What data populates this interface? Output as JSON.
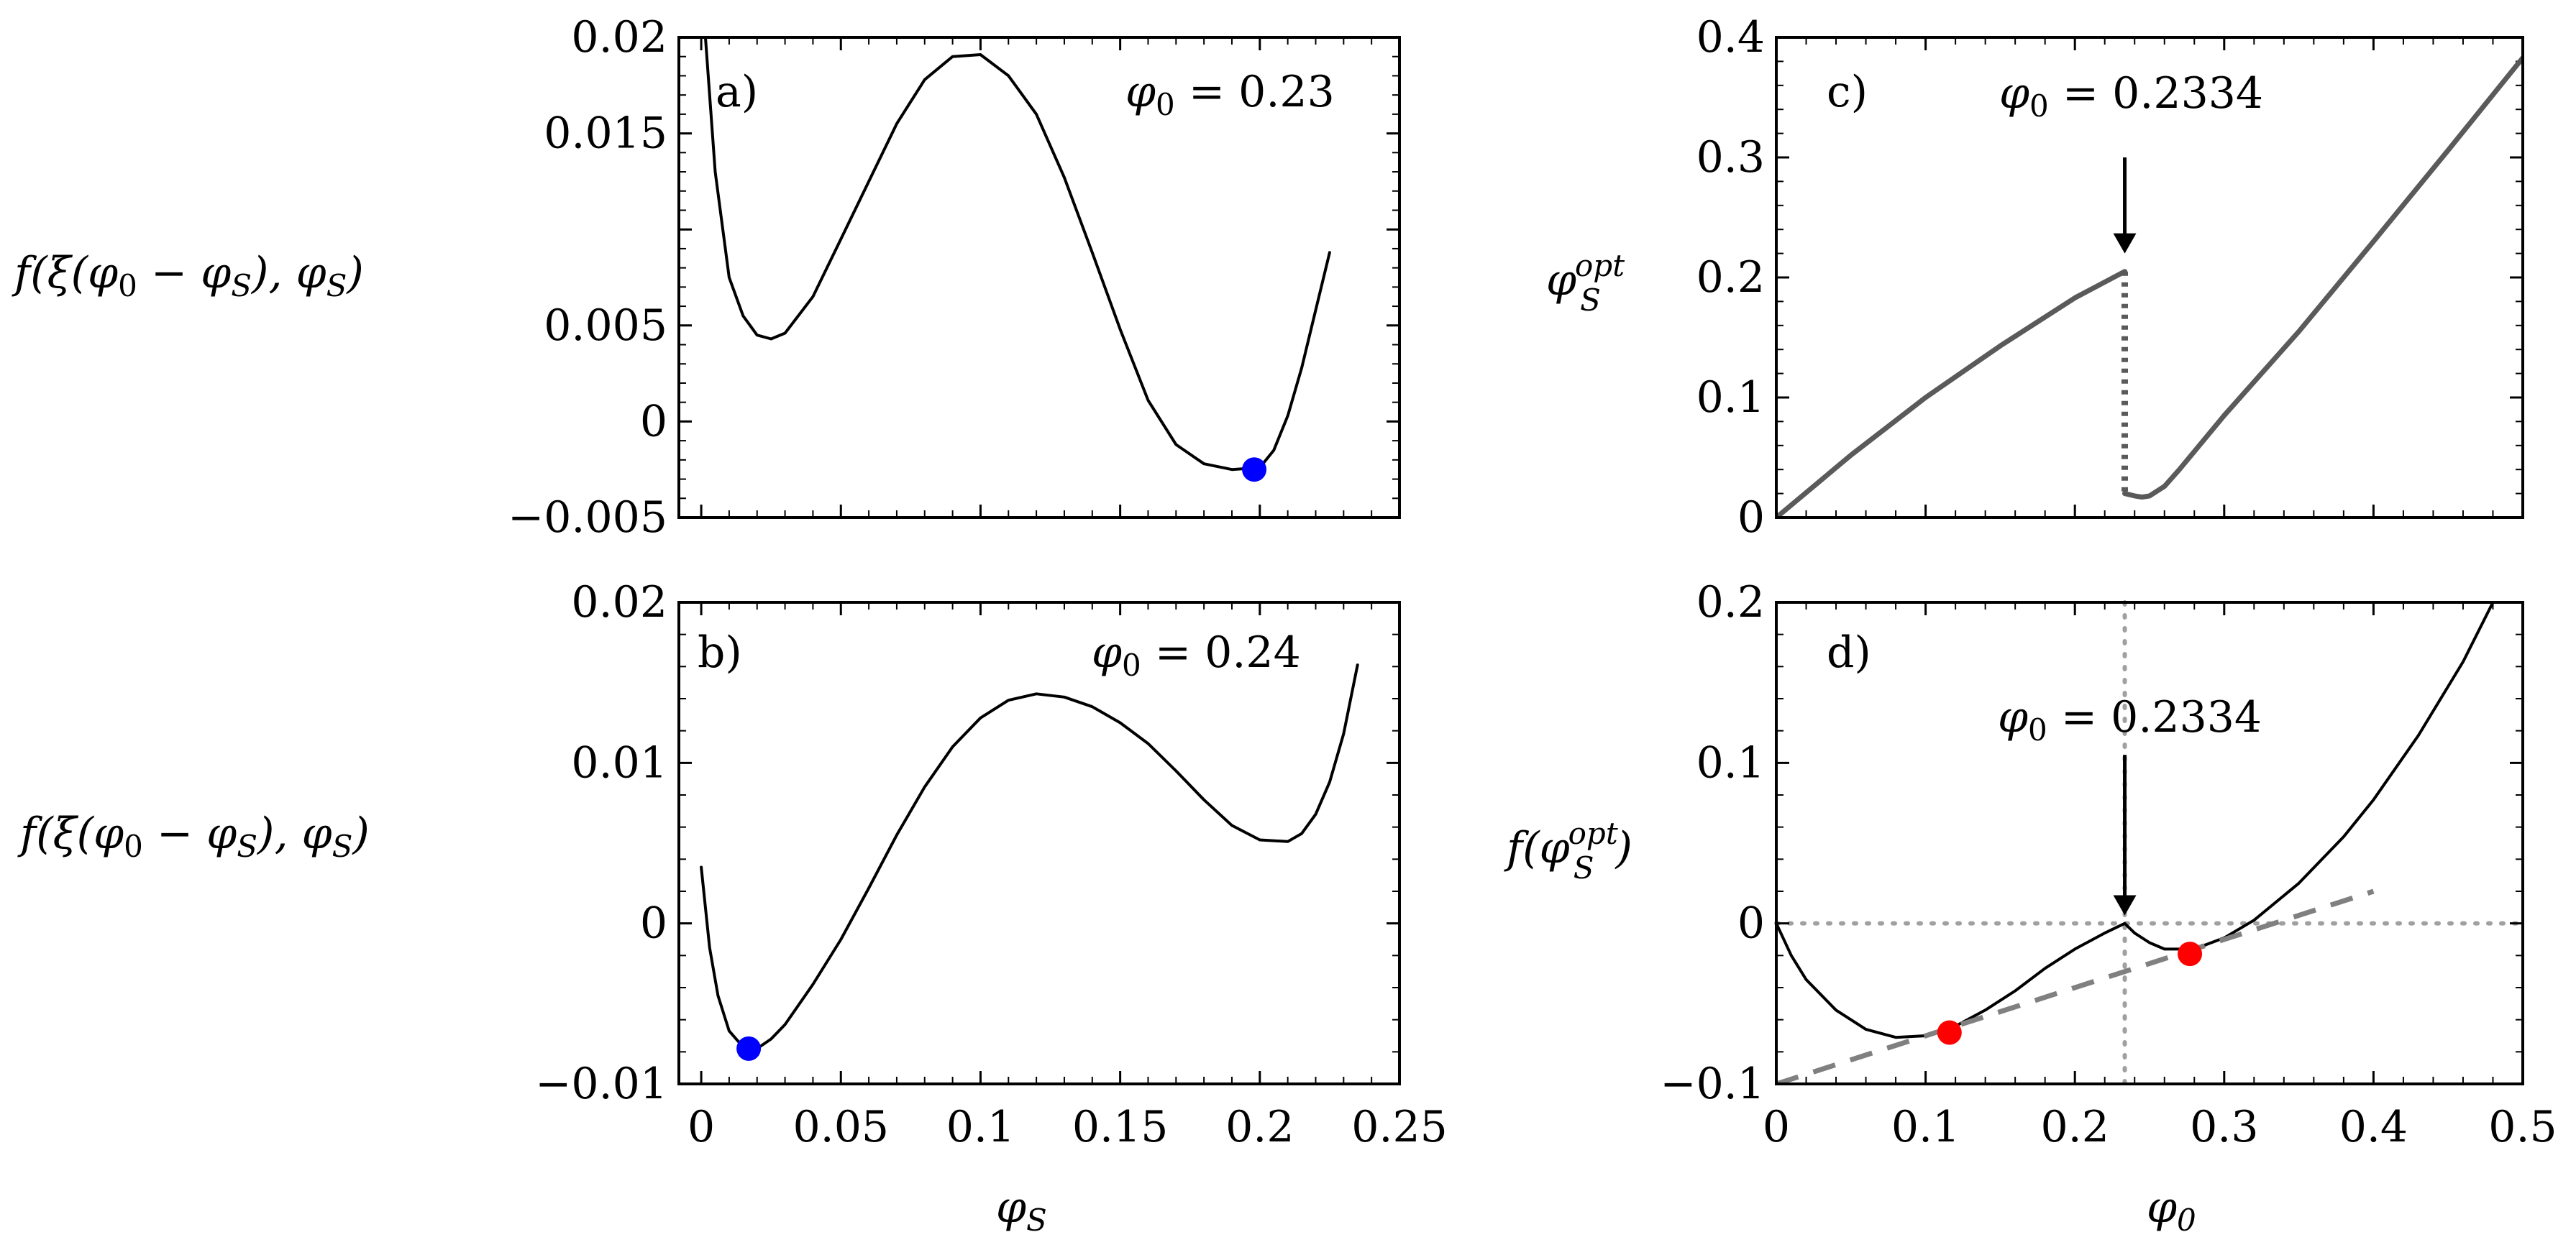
{
  "chart_data": [
    {
      "id": "a",
      "type": "line",
      "panel_label": "a)",
      "annotation": {
        "symbol": "φ",
        "subscript": "0",
        "relation": " = ",
        "value": "0.23"
      },
      "ylabel": {
        "pre": "f(ξ(φ",
        "sub1": "0",
        "mid": " − φ",
        "sub2": "S",
        "mid2": "), φ",
        "sub3": "S",
        "post": ")"
      },
      "xlabel": "",
      "xlim": [
        -0.008,
        0.25
      ],
      "ylim": [
        -0.005,
        0.02
      ],
      "x_ticks": [
        0,
        0.05,
        0.1,
        0.15,
        0.2,
        0.25
      ],
      "x_tick_labels": [],
      "y_ticks": [
        -0.005,
        0,
        0.005,
        0.01,
        0.015,
        0.02
      ],
      "y_tick_labels": [
        "−0.005",
        "0",
        "0.005",
        "",
        "0.015",
        "0.02"
      ],
      "series": [
        {
          "name": "f",
          "color": "#000000",
          "x": [
            0.001,
            0.005,
            0.01,
            0.015,
            0.02,
            0.025,
            0.03,
            0.04,
            0.05,
            0.06,
            0.07,
            0.08,
            0.09,
            0.1,
            0.11,
            0.12,
            0.13,
            0.14,
            0.15,
            0.16,
            0.17,
            0.18,
            0.19,
            0.2,
            0.205,
            0.21,
            0.215,
            0.22,
            0.225
          ],
          "y": [
            0.021,
            0.013,
            0.0075,
            0.0055,
            0.0045,
            0.0043,
            0.0046,
            0.0065,
            0.0095,
            0.0125,
            0.0155,
            0.0178,
            0.019,
            0.0191,
            0.018,
            0.016,
            0.0127,
            0.0088,
            0.0048,
            0.0011,
            -0.0012,
            -0.0022,
            -0.0025,
            -0.0024,
            -0.0015,
            0.0003,
            0.0028,
            0.0058,
            0.0088
          ]
        }
      ],
      "markers": [
        {
          "x": 0.198,
          "y": -0.0025,
          "color": "#0000ff"
        }
      ]
    },
    {
      "id": "b",
      "type": "line",
      "panel_label": "b)",
      "annotation": {
        "symbol": "φ",
        "subscript": "0",
        "relation": " = ",
        "value": "0.24"
      },
      "ylabel": {
        "pre": "f(ξ(φ",
        "sub1": "0",
        "mid": " − φ",
        "sub2": "S",
        "mid2": "), φ",
        "sub3": "S",
        "post": ")"
      },
      "xlabel": {
        "symbol": "φ",
        "subscript": "S"
      },
      "xlim": [
        -0.008,
        0.25
      ],
      "ylim": [
        -0.01,
        0.02
      ],
      "x_ticks": [
        0,
        0.05,
        0.1,
        0.15,
        0.2,
        0.25
      ],
      "x_tick_labels": [
        "0",
        "0.05",
        "0.1",
        "0.15",
        "0.2",
        "0.25"
      ],
      "y_ticks": [
        -0.01,
        0,
        0.01,
        0.02
      ],
      "y_tick_labels": [
        "−0.01",
        "0",
        "0.01",
        "0.02"
      ],
      "series": [
        {
          "name": "f",
          "color": "#000000",
          "x": [
            0.0,
            0.003,
            0.006,
            0.01,
            0.015,
            0.02,
            0.025,
            0.03,
            0.04,
            0.05,
            0.06,
            0.07,
            0.08,
            0.09,
            0.1,
            0.11,
            0.12,
            0.13,
            0.14,
            0.15,
            0.16,
            0.17,
            0.18,
            0.19,
            0.2,
            0.21,
            0.215,
            0.22,
            0.225,
            0.23,
            0.235
          ],
          "y": [
            0.0035,
            -0.0015,
            -0.0045,
            -0.0067,
            -0.0077,
            -0.0078,
            -0.0072,
            -0.0063,
            -0.0038,
            -0.001,
            0.0022,
            0.0055,
            0.0085,
            0.011,
            0.0128,
            0.0139,
            0.0143,
            0.0141,
            0.0135,
            0.0125,
            0.0112,
            0.0095,
            0.0077,
            0.0061,
            0.0052,
            0.0051,
            0.0056,
            0.0068,
            0.0088,
            0.0118,
            0.0161
          ]
        }
      ],
      "markers": [
        {
          "x": 0.017,
          "y": -0.0078,
          "color": "#0000ff"
        }
      ]
    },
    {
      "id": "c",
      "type": "line",
      "panel_label": "c)",
      "annotation": {
        "symbol": "φ",
        "subscript": "0",
        "relation": " = ",
        "value": "0.2334"
      },
      "ylabel": {
        "pre": "φ",
        "sub": "S",
        "sup": "opt"
      },
      "xlabel": "",
      "xlim": [
        0,
        0.5
      ],
      "ylim": [
        0,
        0.4
      ],
      "x_ticks": [
        0,
        0.1,
        0.2,
        0.3,
        0.4,
        0.5
      ],
      "x_tick_labels": [],
      "y_ticks": [
        0,
        0.1,
        0.2,
        0.3,
        0.4
      ],
      "y_tick_labels": [
        "0",
        "0.1",
        "0.2",
        "0.3",
        "0.4"
      ],
      "arrow": {
        "x": 0.2334,
        "y_from": 0.3,
        "y_to": 0.22
      },
      "series": [
        {
          "name": "branch-1",
          "color": "#5a5a5a",
          "dashed": false,
          "x": [
            0.0,
            0.05,
            0.1,
            0.15,
            0.2,
            0.2334
          ],
          "y": [
            0.0,
            0.052,
            0.1,
            0.143,
            0.183,
            0.205
          ]
        },
        {
          "name": "jump",
          "color": "#5a5a5a",
          "dashed": true,
          "x": [
            0.2334,
            0.2334
          ],
          "y": [
            0.205,
            0.02
          ]
        },
        {
          "name": "branch-2",
          "color": "#5a5a5a",
          "dashed": false,
          "x": [
            0.2334,
            0.24,
            0.245,
            0.25,
            0.26,
            0.27,
            0.3,
            0.35,
            0.4,
            0.45,
            0.5
          ],
          "y": [
            0.02,
            0.018,
            0.017,
            0.018,
            0.026,
            0.04,
            0.085,
            0.155,
            0.23,
            0.306,
            0.383
          ]
        }
      ]
    },
    {
      "id": "d",
      "type": "line",
      "panel_label": "d)",
      "annotation": {
        "symbol": "φ",
        "subscript": "0",
        "relation": " = ",
        "value": "0.2334"
      },
      "ylabel": {
        "pre": "f(φ",
        "sub": "S",
        "sup": "opt",
        "post": ")"
      },
      "xlabel": {
        "symbol": "φ",
        "subscript": "0"
      },
      "xlim": [
        0,
        0.5
      ],
      "ylim": [
        -0.1,
        0.2
      ],
      "x_ticks": [
        0,
        0.1,
        0.2,
        0.3,
        0.4,
        0.5
      ],
      "x_tick_labels": [
        "0",
        "0.1",
        "0.2",
        "0.3",
        "0.4",
        "0.5"
      ],
      "y_ticks": [
        -0.1,
        0,
        0.1,
        0.2
      ],
      "y_tick_labels": [
        "−0.1",
        "0",
        "0.1",
        "0.2"
      ],
      "arrow": {
        "x": 0.2334,
        "y_from": 0.105,
        "y_to": 0.005
      },
      "ref_lines": {
        "h": 0,
        "v": 0.2334,
        "color": "#a0a0a0"
      },
      "series": [
        {
          "name": "f-opt",
          "color": "#000000",
          "dashed": false,
          "x": [
            0.0,
            0.01,
            0.02,
            0.04,
            0.06,
            0.08,
            0.1,
            0.12,
            0.14,
            0.16,
            0.18,
            0.2,
            0.22,
            0.2334,
            0.24,
            0.25,
            0.26,
            0.28,
            0.3,
            0.32,
            0.35,
            0.38,
            0.4,
            0.43,
            0.46,
            0.48
          ],
          "y": [
            0.0,
            -0.02,
            -0.035,
            -0.054,
            -0.066,
            -0.071,
            -0.07,
            -0.064,
            -0.054,
            -0.042,
            -0.028,
            -0.016,
            -0.006,
            0.0,
            -0.006,
            -0.012,
            -0.016,
            -0.016,
            -0.009,
            0.002,
            0.025,
            0.054,
            0.077,
            0.117,
            0.163,
            0.2
          ]
        },
        {
          "name": "common-tangent",
          "color": "#808080",
          "dashed": true,
          "x": [
            0.0,
            0.4
          ],
          "y": [
            -0.1,
            0.02
          ]
        }
      ],
      "markers": [
        {
          "x": 0.116,
          "y": -0.068,
          "color": "#ff0000"
        },
        {
          "x": 0.277,
          "y": -0.019,
          "color": "#ff0000"
        }
      ]
    }
  ]
}
